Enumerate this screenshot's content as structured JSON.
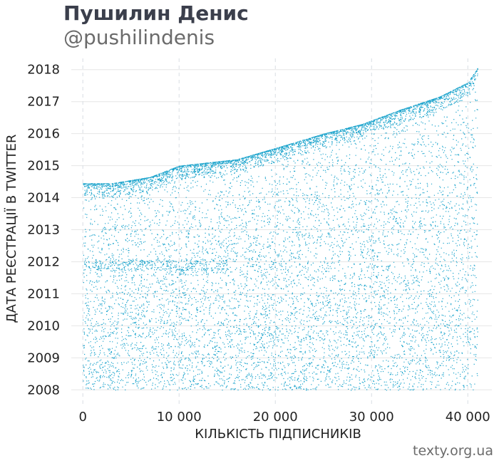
{
  "header": {
    "title": "Пушилин Денис",
    "handle": "@pushilindenis"
  },
  "footer": {
    "source": "texty.org.ua"
  },
  "colors": {
    "points": "#1aa3cc",
    "grid_h": "#e6e6e6",
    "grid_v": "#d8dde3",
    "title": "#3b3f4c",
    "muted": "#6b6b6b"
  },
  "chart_data": {
    "type": "scatter",
    "xlabel": "КІЛЬКІСТЬ ПІДПИСНИКІВ",
    "ylabel": "ДАТА РЕЄСТРАЦІЇ В TWITTER",
    "xlim": [
      -1200,
      42500
    ],
    "ylim": [
      2007.45,
      2018.35
    ],
    "x_ticks": [
      0,
      10000,
      20000,
      30000,
      40000
    ],
    "x_tick_labels": [
      "0",
      "10 000",
      "20 000",
      "30 000",
      "40 000"
    ],
    "y_ticks": [
      2008,
      2009,
      2010,
      2011,
      2012,
      2013,
      2014,
      2015,
      2016,
      2017,
      2018
    ],
    "y_tick_labels": [
      "2008",
      "2009",
      "2010",
      "2011",
      "2012",
      "2013",
      "2014",
      "2015",
      "2016",
      "2017",
      "2018"
    ],
    "grid": "on",
    "legend": "none",
    "series": [
      {
        "note": "points are followers ordered by follow time; each point = (follower index, account registration year)",
        "n_points": 41000,
        "upper_envelope": {
          "x": [
            0,
            3000,
            7000,
            10000,
            13000,
            16000,
            20000,
            25000,
            29000,
            33000,
            37000,
            40000,
            41000
          ],
          "y": [
            2014.45,
            2014.45,
            2014.65,
            2015.0,
            2015.1,
            2015.2,
            2015.55,
            2016.0,
            2016.3,
            2016.75,
            2017.15,
            2017.6,
            2018.05
          ]
        }
      }
    ]
  }
}
